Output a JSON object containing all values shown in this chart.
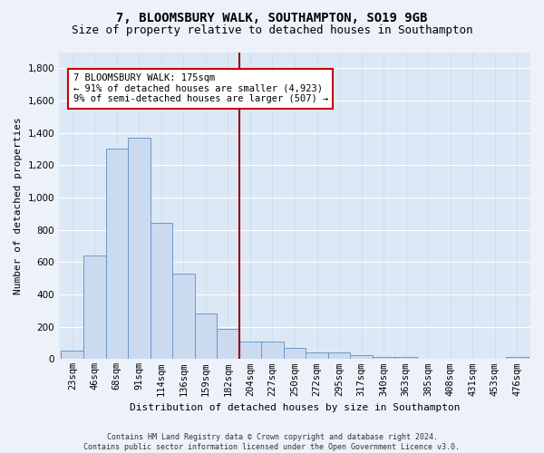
{
  "title": "7, BLOOMSBURY WALK, SOUTHAMPTON, SO19 9GB",
  "subtitle": "Size of property relative to detached houses in Southampton",
  "xlabel": "Distribution of detached houses by size in Southampton",
  "ylabel": "Number of detached properties",
  "categories": [
    "23sqm",
    "46sqm",
    "68sqm",
    "91sqm",
    "114sqm",
    "136sqm",
    "159sqm",
    "182sqm",
    "204sqm",
    "227sqm",
    "250sqm",
    "272sqm",
    "295sqm",
    "317sqm",
    "340sqm",
    "363sqm",
    "385sqm",
    "408sqm",
    "431sqm",
    "453sqm",
    "476sqm"
  ],
  "values": [
    55,
    640,
    1305,
    1370,
    845,
    530,
    280,
    188,
    110,
    110,
    68,
    40,
    40,
    22,
    15,
    15,
    0,
    0,
    0,
    0,
    15
  ],
  "bar_color": "#ccdaf0",
  "bar_edge_color": "#6699cc",
  "vline_x": 7.5,
  "vline_color": "#990000",
  "annotation_text": "7 BLOOMSBURY WALK: 175sqm\n← 91% of detached houses are smaller (4,923)\n9% of semi-detached houses are larger (507) →",
  "annotation_box_facecolor": "#ffffff",
  "annotation_box_edgecolor": "#cc0000",
  "footnote": "Contains HM Land Registry data © Crown copyright and database right 2024.\nContains public sector information licensed under the Open Government Licence v3.0.",
  "ylim": [
    0,
    1900
  ],
  "yticks": [
    0,
    200,
    400,
    600,
    800,
    1000,
    1200,
    1400,
    1600,
    1800
  ],
  "plot_bg": "#dce8f5",
  "fig_bg": "#edf2fa",
  "title_fontsize": 10,
  "subtitle_fontsize": 9,
  "axis_label_fontsize": 8,
  "tick_fontsize": 7.5,
  "footnote_fontsize": 6
}
